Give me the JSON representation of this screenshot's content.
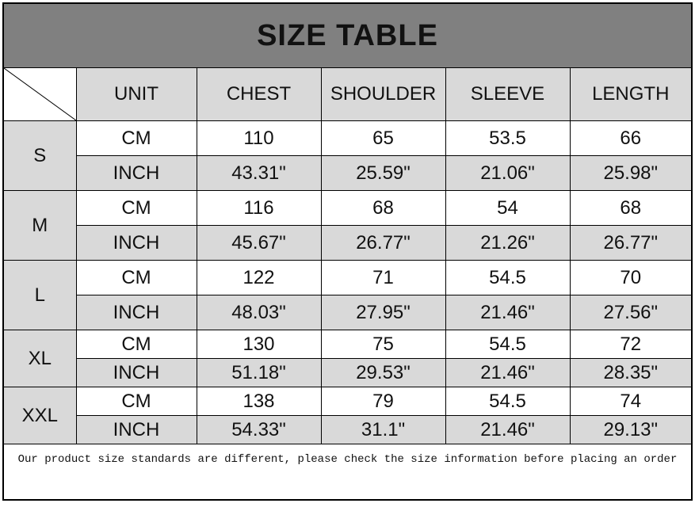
{
  "title": "SIZE TABLE",
  "headers": [
    "UNIT",
    "CHEST",
    "SHOULDER",
    "SLEEVE",
    "LENGTH"
  ],
  "sizes": [
    {
      "size": "S",
      "rows": [
        {
          "unit": "CM",
          "values": [
            "110",
            "65",
            "53.5",
            "66"
          ]
        },
        {
          "unit": "INCH",
          "values": [
            "43.31\"",
            "25.59\"",
            "21.06\"",
            "25.98\""
          ]
        }
      ]
    },
    {
      "size": "M",
      "rows": [
        {
          "unit": "CM",
          "values": [
            "116",
            "68",
            "54",
            "68"
          ]
        },
        {
          "unit": "INCH",
          "values": [
            "45.67\"",
            "26.77\"",
            "21.26\"",
            "26.77\""
          ]
        }
      ]
    },
    {
      "size": "L",
      "rows": [
        {
          "unit": "CM",
          "values": [
            "122",
            "71",
            "54.5",
            "70"
          ]
        },
        {
          "unit": "INCH",
          "values": [
            "48.03\"",
            "27.95\"",
            "21.46\"",
            "27.56\""
          ]
        }
      ]
    },
    {
      "size": "XL",
      "rows": [
        {
          "unit": "CM",
          "values": [
            "130",
            "75",
            "54.5",
            "72"
          ]
        },
        {
          "unit": "INCH",
          "values": [
            "51.18\"",
            "29.53\"",
            "21.46\"",
            "28.35\""
          ]
        }
      ]
    },
    {
      "size": "XXL",
      "rows": [
        {
          "unit": "CM",
          "values": [
            "138",
            "79",
            "54.5",
            "74"
          ]
        },
        {
          "unit": "INCH",
          "values": [
            "54.33\"",
            "31.1\"",
            "21.46\"",
            "29.13\""
          ]
        }
      ]
    }
  ],
  "footer_note": "Our product size standards are different, please check the size information before placing an order",
  "colors": {
    "title_bg": "#808080",
    "cell_gray": "#d9d9d9"
  }
}
